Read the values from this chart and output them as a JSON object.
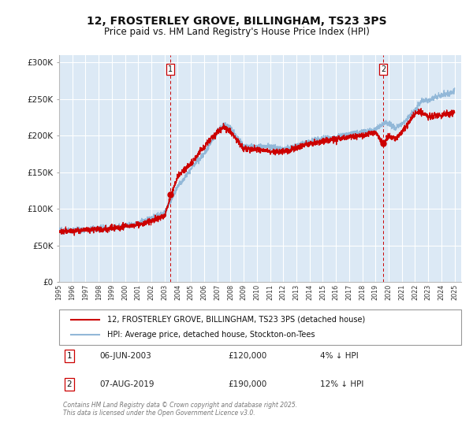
{
  "title": "12, FROSTERLEY GROVE, BILLINGHAM, TS23 3PS",
  "subtitle": "Price paid vs. HM Land Registry's House Price Index (HPI)",
  "background_color": "#ffffff",
  "plot_bg_color": "#dce9f5",
  "grid_color": "#ffffff",
  "ylim": [
    0,
    310000
  ],
  "yticks": [
    0,
    50000,
    100000,
    150000,
    200000,
    250000,
    300000
  ],
  "ytick_labels": [
    "£0",
    "£50K",
    "£100K",
    "£150K",
    "£200K",
    "£250K",
    "£300K"
  ],
  "x_start_year": 1995,
  "x_end_year": 2025,
  "marker1_year": 2003.42,
  "marker1_value": 120000,
  "marker1_label": "1",
  "marker1_date": "06-JUN-2003",
  "marker1_price": "£120,000",
  "marker1_hpi": "4% ↓ HPI",
  "marker2_year": 2019.58,
  "marker2_value": 190000,
  "marker2_label": "2",
  "marker2_date": "07-AUG-2019",
  "marker2_price": "£190,000",
  "marker2_hpi": "12% ↓ HPI",
  "hpi_color": "#92b8d8",
  "sale_color": "#cc0000",
  "vline_color": "#cc0000",
  "legend_label_sale": "12, FROSTERLEY GROVE, BILLINGHAM, TS23 3PS (detached house)",
  "legend_label_hpi": "HPI: Average price, detached house, Stockton-on-Tees",
  "footer": "Contains HM Land Registry data © Crown copyright and database right 2025.\nThis data is licensed under the Open Government Licence v3.0."
}
